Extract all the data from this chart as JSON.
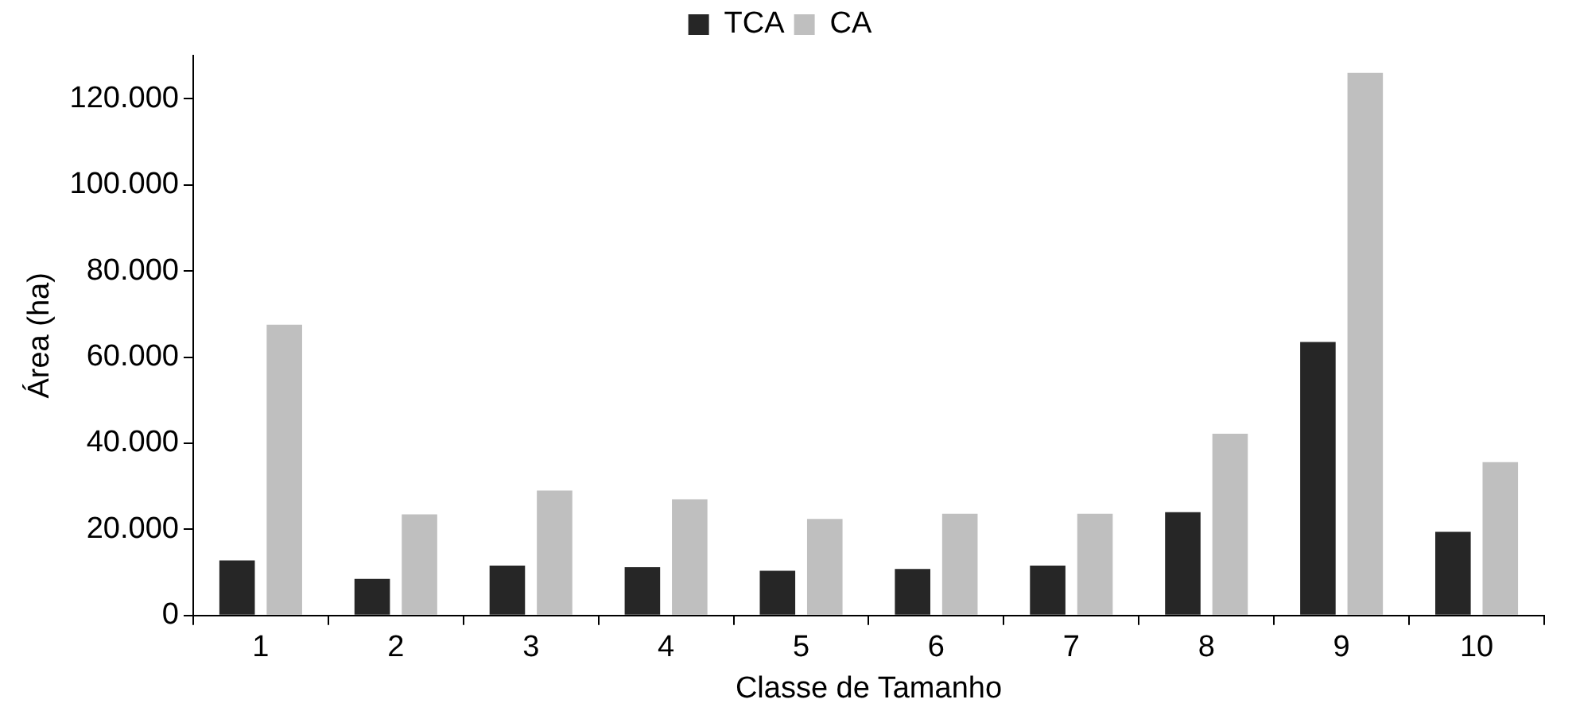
{
  "chart_data": {
    "type": "bar",
    "xlabel": "Classe de Tamanho",
    "ylabel": "Área (ha)",
    "categories": [
      "1",
      "2",
      "3",
      "4",
      "5",
      "6",
      "7",
      "8",
      "9",
      "10"
    ],
    "series": [
      {
        "name": "TCA",
        "color": "#262626",
        "values": [
          12800,
          8500,
          11600,
          11200,
          10400,
          10800,
          11600,
          24000,
          63500,
          19400
        ]
      },
      {
        "name": "CA",
        "color": "#bfbfbf",
        "values": [
          67500,
          23500,
          29000,
          27000,
          22400,
          23600,
          23600,
          42200,
          126000,
          35600
        ]
      }
    ],
    "ylim": [
      0,
      130000
    ],
    "yticks": [
      {
        "value": 0,
        "label": "0"
      },
      {
        "value": 20000,
        "label": "20.000"
      },
      {
        "value": 40000,
        "label": "40.000"
      },
      {
        "value": 60000,
        "label": "60.000"
      },
      {
        "value": 80000,
        "label": "80.000"
      },
      {
        "value": 100000,
        "label": "100.000"
      },
      {
        "value": 120000,
        "label": "120.000"
      }
    ],
    "grid": false,
    "legend": "top"
  }
}
